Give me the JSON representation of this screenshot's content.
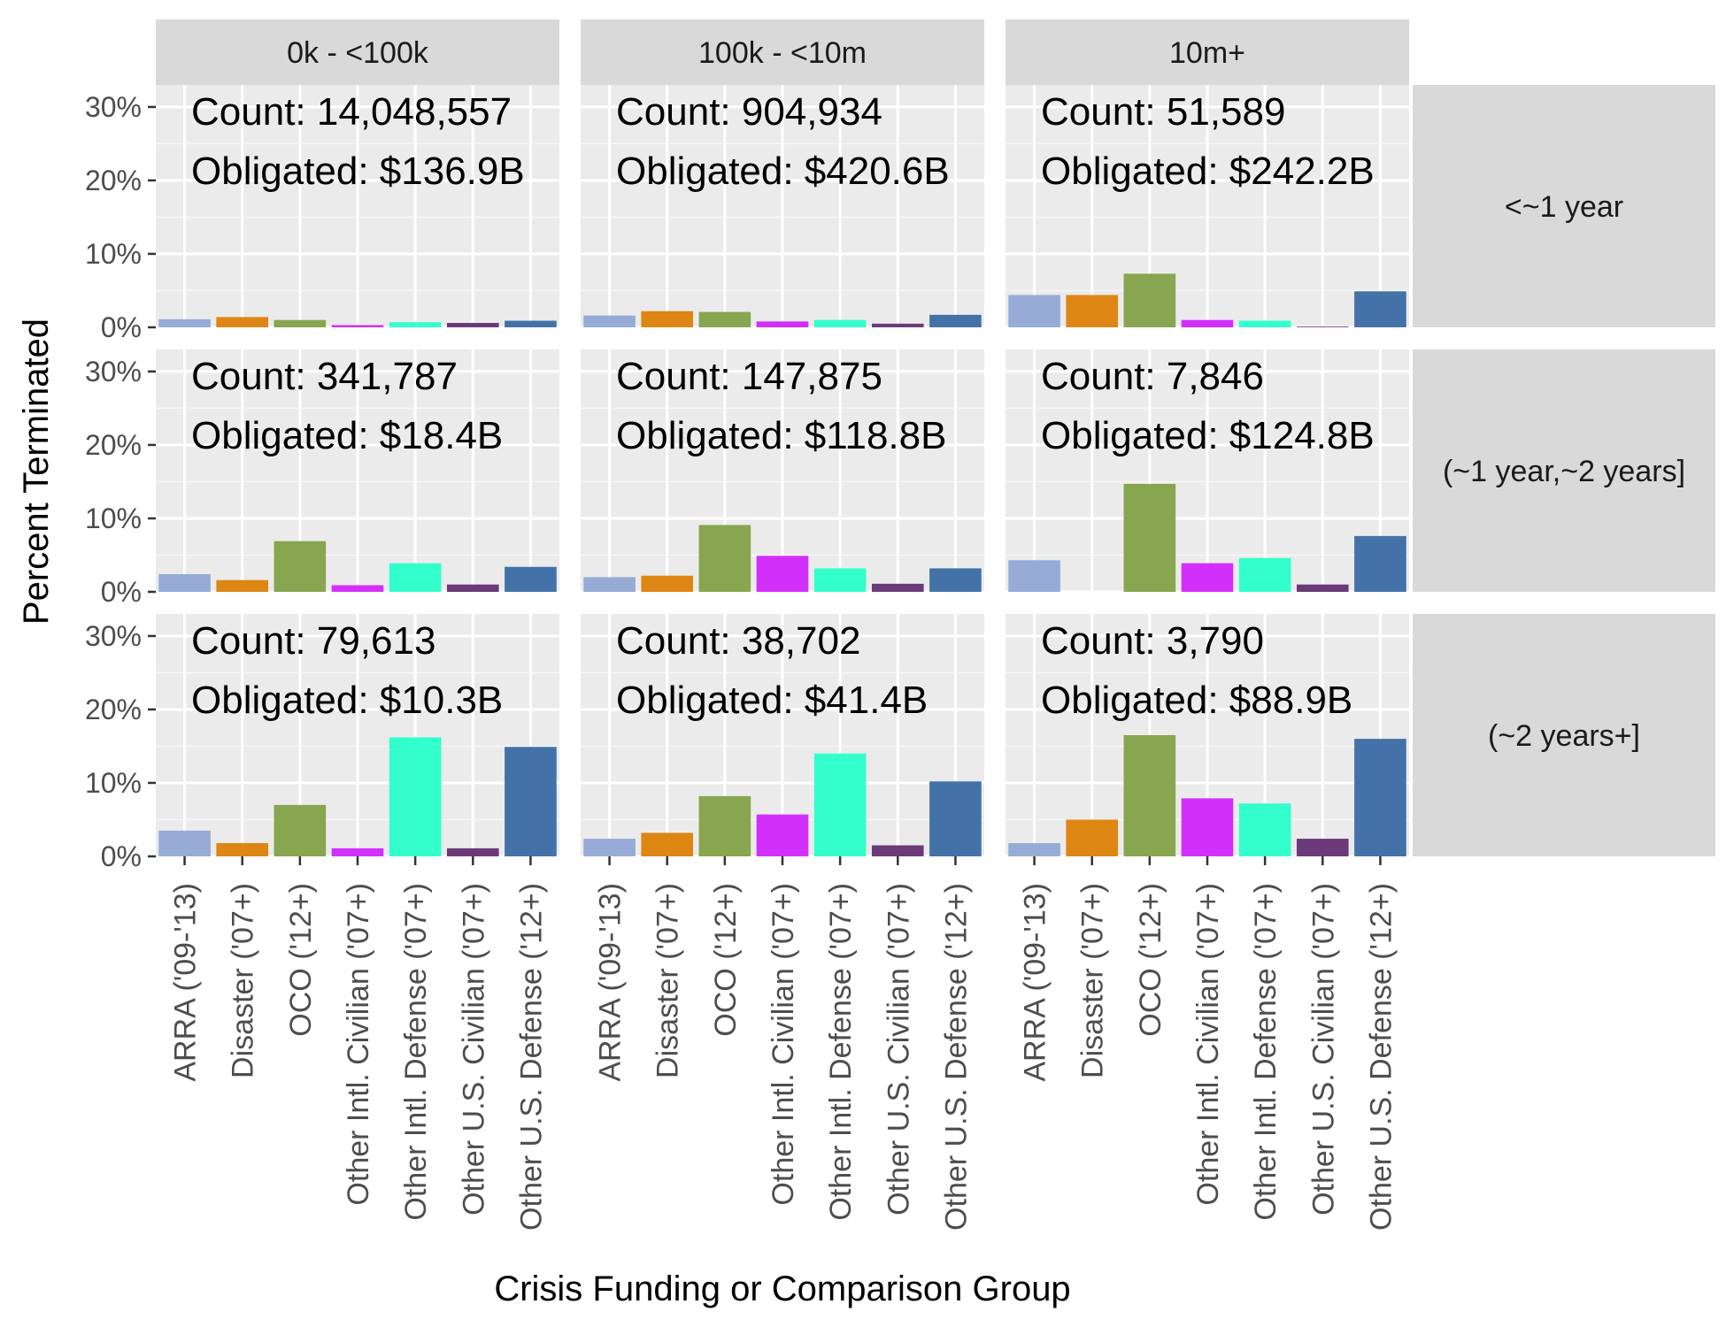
{
  "chart_data": {
    "type": "bar",
    "xlabel": "Crisis Funding or Comparison Group",
    "ylabel": "Percent Terminated",
    "ylim": [
      0,
      0.33
    ],
    "yticks": [
      0,
      0.1,
      0.2,
      0.3
    ],
    "ytick_labels": [
      "0%",
      "10%",
      "20%",
      "30%"
    ],
    "grid": true,
    "legend": "none",
    "categories": [
      "ARRA ('09-'13)",
      "Disaster ('07+)",
      "OCO ('12+)",
      "Other Intl. Civilian ('07+)",
      "Other Intl. Defense ('07+)",
      "Other U.S. Civilian ('07+)",
      "Other U.S. Defense ('12+)"
    ],
    "colors": [
      "#96abd6",
      "#dd8614",
      "#88a64f",
      "#d32ffb",
      "#33ffcc",
      "#6b3a79",
      "#4372a9"
    ],
    "column_facets": [
      "0k - <100k",
      "100k - <10m",
      "10m+"
    ],
    "row_facets": [
      "<~1 year",
      "(~1 year,~2 years]",
      "(~2 years+]"
    ],
    "panels": [
      {
        "row": 0,
        "col": 0,
        "count": "Count: 14,048,557",
        "obligated": "Obligated: $136.9B",
        "values": [
          0.011,
          0.014,
          0.01,
          0.003,
          0.007,
          0.006,
          0.009
        ]
      },
      {
        "row": 0,
        "col": 1,
        "count": "Count: 904,934",
        "obligated": "Obligated: $420.6B",
        "values": [
          0.016,
          0.022,
          0.021,
          0.008,
          0.01,
          0.005,
          0.017
        ]
      },
      {
        "row": 0,
        "col": 2,
        "count": "Count: 51,589",
        "obligated": "Obligated: $242.2B",
        "values": [
          0.044,
          0.044,
          0.073,
          0.01,
          0.009,
          0.001,
          0.049
        ]
      },
      {
        "row": 1,
        "col": 0,
        "count": "Count: 341,787",
        "obligated": "Obligated: $18.4B",
        "values": [
          0.024,
          0.016,
          0.069,
          0.009,
          0.039,
          0.01,
          0.034
        ]
      },
      {
        "row": 1,
        "col": 1,
        "count": "Count: 147,875",
        "obligated": "Obligated: $118.8B",
        "values": [
          0.02,
          0.022,
          0.091,
          0.049,
          0.032,
          0.011,
          0.032
        ]
      },
      {
        "row": 1,
        "col": 2,
        "count": "Count: 7,846",
        "obligated": "Obligated: $124.8B",
        "values": [
          0.043,
          0.0,
          0.147,
          0.039,
          0.046,
          0.01,
          0.076
        ]
      },
      {
        "row": 2,
        "col": 0,
        "count": "Count: 79,613",
        "obligated": "Obligated: $10.3B",
        "values": [
          0.035,
          0.018,
          0.07,
          0.011,
          0.162,
          0.011,
          0.149
        ]
      },
      {
        "row": 2,
        "col": 1,
        "count": "Count: 38,702",
        "obligated": "Obligated: $41.4B",
        "values": [
          0.024,
          0.032,
          0.082,
          0.057,
          0.14,
          0.015,
          0.102
        ]
      },
      {
        "row": 2,
        "col": 2,
        "count": "Count: 3,790",
        "obligated": "Obligated: $88.9B",
        "values": [
          0.018,
          0.05,
          0.165,
          0.079,
          0.072,
          0.024,
          0.16
        ]
      }
    ]
  }
}
